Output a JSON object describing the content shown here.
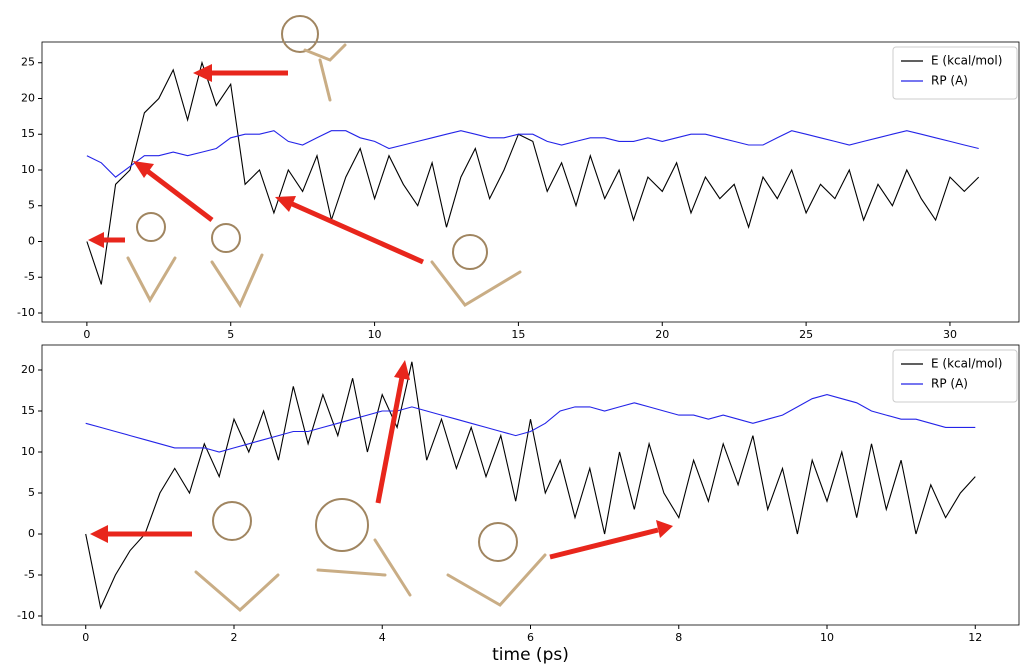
{
  "chart_data": [
    {
      "type": "line",
      "x": [
        0,
        0.5,
        1,
        1.5,
        2,
        2.5,
        3,
        3.5,
        4,
        4.5,
        5,
        5.5,
        6,
        6.5,
        7,
        7.5,
        8,
        8.5,
        9,
        9.5,
        10,
        10.5,
        11,
        11.5,
        12,
        12.5,
        13,
        13.5,
        14,
        14.5,
        15,
        15.5,
        16,
        16.5,
        17,
        17.5,
        18,
        18.5,
        19,
        19.5,
        20,
        20.5,
        21,
        21.5,
        22,
        22.5,
        23,
        23.5,
        24,
        24.5,
        25,
        25.5,
        26,
        26.5,
        27,
        27.5,
        28,
        28.5,
        29,
        29.5,
        30,
        30.5,
        31
      ],
      "series": [
        {
          "name": "E (kcal/mol)",
          "color": "#000000",
          "values": [
            0,
            -6,
            8,
            10,
            18,
            20,
            24,
            17,
            25,
            19,
            22,
            8,
            10,
            4,
            10,
            7,
            12,
            3,
            9,
            13,
            6,
            12,
            8,
            5,
            11,
            2,
            9,
            13,
            6,
            10,
            15,
            14,
            7,
            11,
            5,
            12,
            6,
            10,
            3,
            9,
            7,
            11,
            4,
            9,
            6,
            8,
            2,
            9,
            6,
            10,
            4,
            8,
            6,
            10,
            3,
            8,
            5,
            10,
            6,
            3,
            9,
            7,
            9
          ]
        },
        {
          "name": "RP (A)",
          "color": "#2424e8",
          "values": [
            12,
            11,
            9,
            10.5,
            12,
            12,
            12.5,
            12,
            12.5,
            13,
            14.5,
            15,
            15,
            15.5,
            14,
            13.5,
            14.5,
            15.5,
            15.5,
            14.5,
            14,
            13,
            13.5,
            14,
            14.5,
            15,
            15.5,
            15,
            14.5,
            14.5,
            15,
            15,
            14,
            13.5,
            14,
            14.5,
            14.5,
            14,
            14,
            14.5,
            14,
            14.5,
            15,
            15,
            14.5,
            14,
            13.5,
            13.5,
            14.5,
            15.5,
            15,
            14.5,
            14,
            13.5,
            14,
            14.5,
            15,
            15.5,
            15,
            14.5,
            14,
            13.5,
            13
          ]
        }
      ],
      "xlim": [
        -1.56,
        32.4
      ],
      "ylim": [
        -11.26,
        27.9
      ],
      "xticks": [
        0,
        5,
        10,
        15,
        20,
        25,
        30
      ],
      "yticks": [
        -10,
        -5,
        0,
        5,
        10,
        15,
        20,
        25
      ],
      "legend": "upper right"
    },
    {
      "type": "line",
      "x": [
        0,
        0.2,
        0.4,
        0.6,
        0.8,
        1,
        1.2,
        1.4,
        1.6,
        1.8,
        2,
        2.2,
        2.4,
        2.6,
        2.8,
        3,
        3.2,
        3.4,
        3.6,
        3.8,
        4,
        4.2,
        4.4,
        4.6,
        4.8,
        5,
        5.2,
        5.4,
        5.6,
        5.8,
        6,
        6.2,
        6.4,
        6.6,
        6.8,
        7,
        7.2,
        7.4,
        7.6,
        7.8,
        8,
        8.2,
        8.4,
        8.6,
        8.8,
        9,
        9.2,
        9.4,
        9.6,
        9.8,
        10,
        10.2,
        10.4,
        10.6,
        10.8,
        11,
        11.2,
        11.4,
        11.6,
        11.8,
        12
      ],
      "series": [
        {
          "name": "E (kcal/mol)",
          "color": "#000000",
          "values": [
            0,
            -9,
            -5,
            -2,
            0,
            5,
            8,
            5,
            11,
            7,
            14,
            10,
            15,
            9,
            18,
            11,
            17,
            12,
            19,
            10,
            17,
            13,
            21,
            9,
            14,
            8,
            13,
            7,
            12,
            4,
            14,
            5,
            9,
            2,
            8,
            0,
            10,
            3,
            11,
            5,
            2,
            9,
            4,
            11,
            6,
            12,
            3,
            8,
            0,
            9,
            4,
            10,
            2,
            11,
            3,
            9,
            0,
            6,
            2,
            5,
            7
          ]
        },
        {
          "name": "RP (A)",
          "color": "#2424e8",
          "values": [
            13.5,
            13,
            12.5,
            12,
            11.5,
            11,
            10.5,
            10.5,
            10.5,
            10,
            10.5,
            11,
            11.5,
            12,
            12.5,
            12.5,
            13,
            13.5,
            14,
            14.5,
            15,
            15,
            15.5,
            15,
            14.5,
            14,
            13.5,
            13,
            12.5,
            12,
            12.5,
            13.5,
            15,
            15.5,
            15.5,
            15,
            15.5,
            16,
            15.5,
            15,
            14.5,
            14.5,
            14,
            14.5,
            14,
            13.5,
            14,
            14.5,
            15.5,
            16.5,
            17,
            16.5,
            16,
            15,
            14.5,
            14,
            14,
            13.5,
            13,
            13,
            13
          ]
        }
      ],
      "xlim": [
        -0.59,
        12.59
      ],
      "ylim": [
        -11.1,
        23.05
      ],
      "xticks": [
        0,
        2,
        4,
        6,
        8,
        10,
        12
      ],
      "yticks": [
        -10,
        -5,
        0,
        5,
        10,
        15,
        20
      ],
      "xlabel": "time (ps)",
      "legend": "upper right"
    }
  ]
}
